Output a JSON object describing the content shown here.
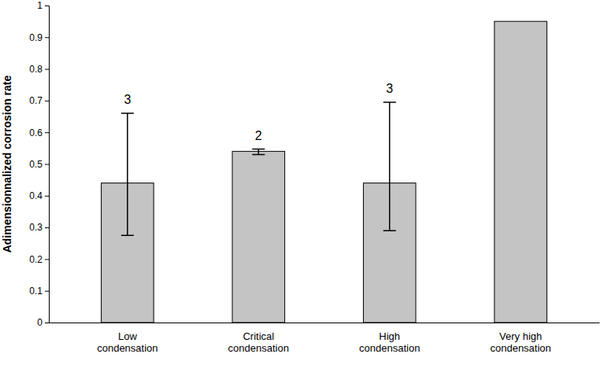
{
  "chart_data": {
    "type": "bar",
    "y_label": "Adimensionnalized corrosion rate",
    "categories": [
      "Low condensation",
      "Critical condensation",
      "High condensation",
      "Very high condensation"
    ],
    "values": [
      0.44,
      0.54,
      0.44,
      0.95
    ],
    "error_minus": [
      0.165,
      0.01,
      0.15,
      null
    ],
    "error_plus": [
      0.22,
      0.007,
      0.255,
      null
    ],
    "sample_sizes": [
      3,
      2,
      3,
      null
    ],
    "color": "#c4c4c4",
    "ylim": [
      0,
      1
    ],
    "yticks": [
      0,
      0.1,
      0.2,
      0.3,
      0.4,
      0.5,
      0.6,
      0.7,
      0.8,
      0.9,
      1
    ],
    "grid": false
  }
}
